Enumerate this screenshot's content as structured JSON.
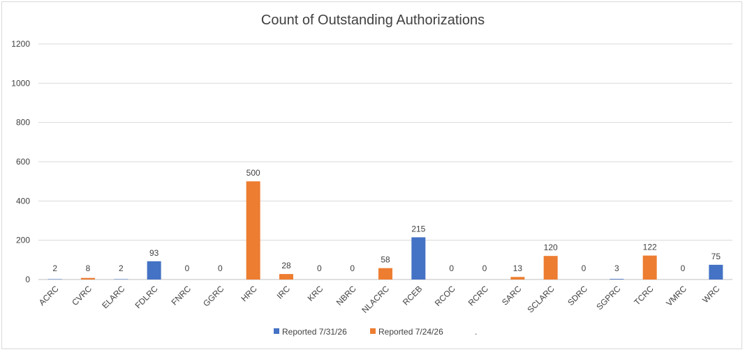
{
  "chart_data": {
    "type": "bar",
    "title": "Count of Outstanding Authorizations",
    "ylim": [
      0,
      1200
    ],
    "yticks": [
      0,
      200,
      400,
      600,
      800,
      1000,
      1200
    ],
    "grid": true,
    "legend_position": "bottom",
    "categories": [
      "ACRC",
      "CVRC",
      "ELARC",
      "FDLRC",
      "FNRC",
      "GGRC",
      "HRC",
      "IRC",
      "KRC",
      "NBRC",
      "NLACRC",
      "RCEB",
      "RCOC",
      "RCRC",
      "SARC",
      "SCLARC",
      "SDRC",
      "SGPRC",
      "TCRC",
      "VMRC",
      "WRC"
    ],
    "values": [
      2,
      8,
      2,
      93,
      0,
      0,
      500,
      28,
      0,
      0,
      58,
      215,
      0,
      0,
      13,
      120,
      0,
      3,
      122,
      0,
      75
    ],
    "bar_series": [
      0,
      1,
      0,
      0,
      0,
      0,
      1,
      1,
      0,
      0,
      1,
      0,
      0,
      0,
      1,
      1,
      0,
      0,
      1,
      0,
      0
    ],
    "series": [
      {
        "name": "Reported 7/31/26",
        "color": "#4472C4"
      },
      {
        "name": "Reported 7/24/26",
        "color": "#ED7D31"
      },
      {
        "name": ".",
        "color": "#ffffff"
      }
    ]
  }
}
